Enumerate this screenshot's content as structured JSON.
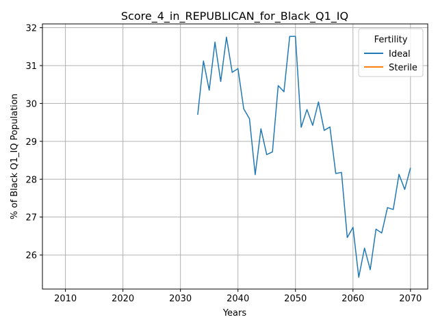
{
  "chart_data": {
    "type": "line",
    "title": "Score_4_in_REPUBLICAN_for_Black_Q1_IQ",
    "xlabel": "Years",
    "ylabel": "% of Black Q1_IQ Population",
    "xlim": [
      2006,
      2073
    ],
    "ylim": [
      25.1,
      32.1
    ],
    "xticks": [
      2010,
      2020,
      2030,
      2040,
      2050,
      2060,
      2070
    ],
    "yticks": [
      26,
      27,
      28,
      29,
      30,
      31,
      32
    ],
    "grid": true,
    "legend": {
      "title": "Fertility",
      "placement": "top-right"
    },
    "series": [
      {
        "name": "Ideal",
        "color": "#1f77b4",
        "x": [
          2033,
          2034,
          2035,
          2036,
          2037,
          2038,
          2039,
          2040,
          2041,
          2042,
          2043,
          2044,
          2045,
          2046,
          2047,
          2048,
          2049,
          2050,
          2051,
          2052,
          2053,
          2054,
          2055,
          2056,
          2057,
          2058,
          2059,
          2060,
          2061,
          2062,
          2063,
          2064,
          2065,
          2066,
          2067,
          2068,
          2069,
          2070
        ],
        "y": [
          29.7,
          31.12,
          30.35,
          31.62,
          30.58,
          31.75,
          30.82,
          30.92,
          29.86,
          29.6,
          28.12,
          29.33,
          28.65,
          28.72,
          30.47,
          30.31,
          31.77,
          31.77,
          29.37,
          29.84,
          29.42,
          30.04,
          29.29,
          29.38,
          28.15,
          28.18,
          26.46,
          26.73,
          25.41,
          26.18,
          25.61,
          26.68,
          26.58,
          27.25,
          27.2,
          28.13,
          27.73,
          28.3
        ]
      },
      {
        "name": "Sterile",
        "color": "#ff7f0e",
        "x": [],
        "y": []
      }
    ]
  }
}
